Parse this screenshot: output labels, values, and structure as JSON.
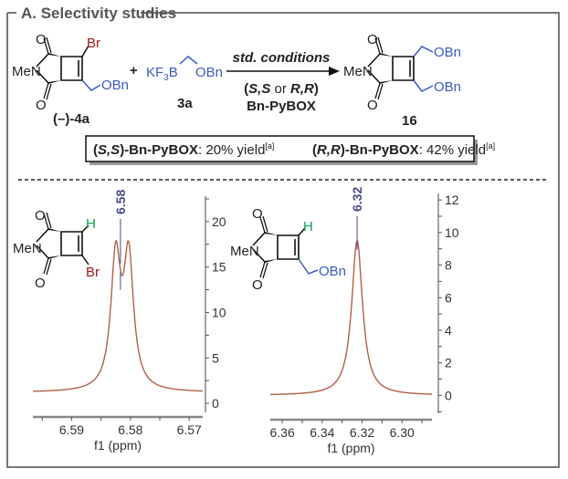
{
  "section_title": "A. Selectivity studies",
  "reaction": {
    "reactant1": {
      "label": "(–)-4a",
      "substituent_top": "Br",
      "substituent_bottom": "OBn",
      "amine": "MeN",
      "oxygen": "O"
    },
    "plus": "+",
    "reagent": {
      "prefix": "KF",
      "sub": "3",
      "suffix": "B",
      "group": "OBn",
      "label": "3a"
    },
    "arrow_top": "std. conditions",
    "arrow_bottom_1_parts": [
      "(",
      "S,S",
      " or ",
      "R,R",
      ")"
    ],
    "arrow_bottom_2": "Bn-PyBOX",
    "product": {
      "label": "16",
      "group_top": "OBn",
      "group_bottom": "OBn",
      "amine": "MeN",
      "oxygen": "O"
    }
  },
  "yields": [
    {
      "ligand_prefix": "(",
      "ligand_stereo": "S,S",
      "ligand_suffix": ")-Bn-PyBOX",
      "text": ": 20% yield",
      "note": "[a]"
    },
    {
      "ligand_prefix": "(",
      "ligand_stereo": "R,R",
      "ligand_suffix": ")-Bn-PyBOX",
      "text": ": 42% yield",
      "note": "[a]"
    }
  ],
  "colors": {
    "spectrum": "#b0604a",
    "peak_label": "#4a4a8a",
    "blue": "#3b5bc4",
    "red": "#a01818",
    "green": "#15a050"
  },
  "insets": [
    {
      "H": "H",
      "sub": "Br",
      "amine": "MeN",
      "oxygen": "O"
    },
    {
      "H": "H",
      "sub": "OBn",
      "amine": "MeN",
      "oxygen": "O"
    }
  ],
  "chart_data": [
    {
      "type": "line",
      "title": "",
      "xlabel": "f1 (ppm)",
      "ylabel": "",
      "xlim": [
        6.5966,
        6.5677
      ],
      "ylim": [
        -1,
        22.8
      ],
      "xticks": [
        6.59,
        6.58,
        6.57
      ],
      "xtick_labels": [
        "6.59",
        "6.58",
        "6.57"
      ],
      "yticks": [
        0,
        5,
        10,
        15,
        20
      ],
      "ytick_labels": [
        "0",
        "5",
        "10",
        "15",
        "20"
      ],
      "baseline": 1.2,
      "halfwidth_ppm": 0.001,
      "peaks": [
        {
          "ppm": 6.5825,
          "amplitude": 14.2
        },
        {
          "ppm": 6.5803,
          "amplitude": 14.2
        }
      ],
      "peak_label": {
        "text": "6.58",
        "ppm": 6.5817
      }
    },
    {
      "type": "line",
      "title": "",
      "xlabel": "f1 (ppm)",
      "ylabel": "",
      "xlim": [
        6.366,
        6.285
      ],
      "ylim": [
        -1.1,
        12.4
      ],
      "xticks": [
        6.36,
        6.34,
        6.32,
        6.3
      ],
      "xtick_labels": [
        "6.36",
        "6.34",
        "6.32",
        "6.30"
      ],
      "yticks": [
        0,
        2,
        4,
        6,
        8,
        10,
        12
      ],
      "ytick_labels": [
        "0",
        "2",
        "4",
        "6",
        "8",
        "10",
        "12"
      ],
      "baseline": 0,
      "halfwidth_ppm": 0.0033,
      "peaks": [
        {
          "ppm": 6.3225,
          "amplitude": 9.5
        }
      ],
      "peak_label": {
        "text": "6.32",
        "ppm": 6.3225
      }
    }
  ]
}
